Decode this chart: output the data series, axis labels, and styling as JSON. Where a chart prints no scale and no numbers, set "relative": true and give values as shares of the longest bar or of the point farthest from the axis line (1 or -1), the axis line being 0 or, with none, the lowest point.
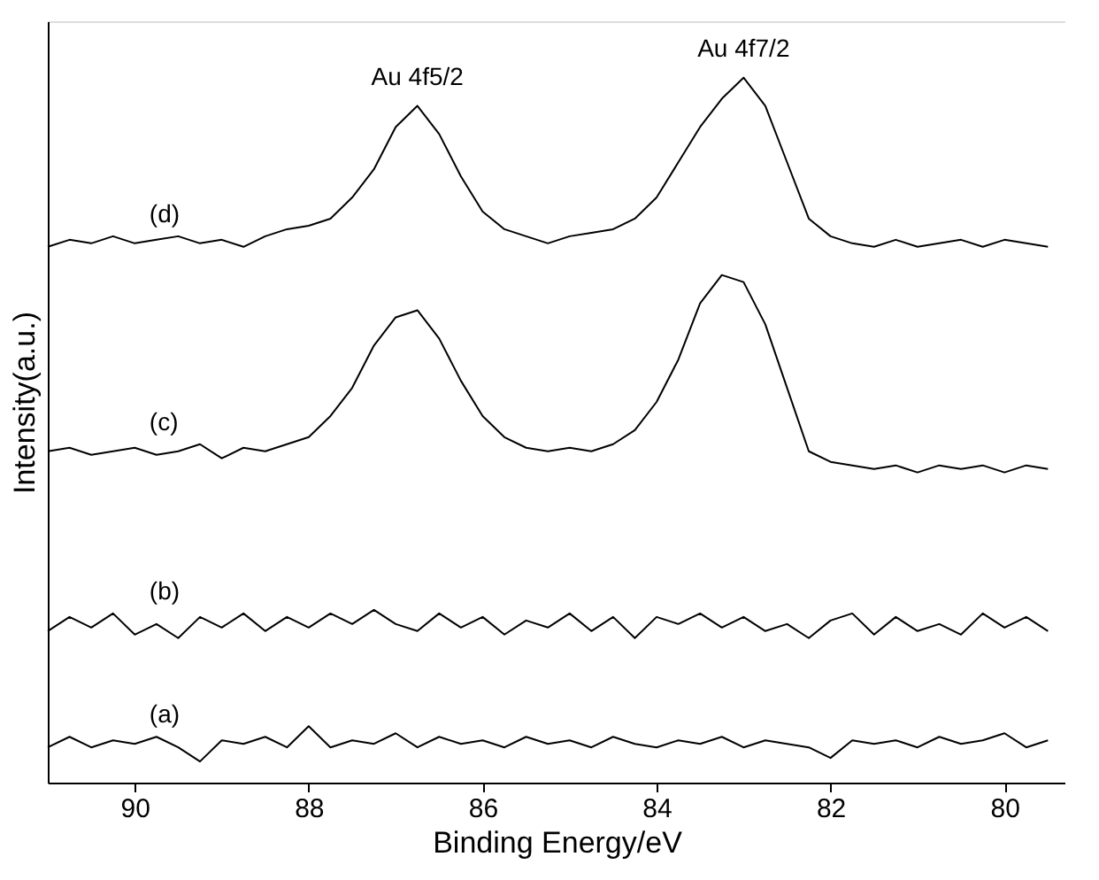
{
  "chart_data": {
    "type": "line",
    "relative": true,
    "xlabel": "Binding Energy/eV",
    "ylabel": "Intensity(a.u.)",
    "xlim": [
      91,
      79.3
    ],
    "xticks": [
      90,
      88,
      86,
      84,
      82,
      80
    ],
    "grid": false,
    "line_style": "solid",
    "x": [
      91,
      90.75,
      90.5,
      90.25,
      90,
      89.75,
      89.5,
      89.25,
      89,
      88.75,
      88.5,
      88.25,
      88,
      87.75,
      87.5,
      87.25,
      87,
      86.75,
      86.5,
      86.25,
      86,
      85.75,
      85.5,
      85.25,
      85,
      84.75,
      84.5,
      84.25,
      84,
      83.75,
      83.5,
      83.25,
      83,
      82.75,
      82.5,
      82.25,
      82,
      81.75,
      81.5,
      81.25,
      81,
      80.75,
      80.5,
      80.25,
      80,
      79.75,
      79.5
    ],
    "series": [
      {
        "name": "(a)",
        "color": "#000000",
        "values": [
          0.05,
          0.065,
          0.05,
          0.06,
          0.055,
          0.065,
          0.05,
          0.03,
          0.06,
          0.055,
          0.065,
          0.05,
          0.08,
          0.05,
          0.06,
          0.055,
          0.07,
          0.05,
          0.065,
          0.055,
          0.06,
          0.05,
          0.065,
          0.055,
          0.06,
          0.05,
          0.065,
          0.055,
          0.05,
          0.06,
          0.055,
          0.065,
          0.05,
          0.06,
          0.055,
          0.05,
          0.035,
          0.06,
          0.055,
          0.06,
          0.05,
          0.065,
          0.055,
          0.06,
          0.07,
          0.05,
          0.06
        ]
      },
      {
        "name": "(b)",
        "color": "#000000",
        "values": [
          0.215,
          0.235,
          0.22,
          0.24,
          0.21,
          0.225,
          0.205,
          0.235,
          0.22,
          0.24,
          0.215,
          0.235,
          0.22,
          0.24,
          0.225,
          0.245,
          0.225,
          0.215,
          0.24,
          0.22,
          0.235,
          0.21,
          0.23,
          0.22,
          0.24,
          0.215,
          0.235,
          0.205,
          0.235,
          0.225,
          0.24,
          0.22,
          0.235,
          0.215,
          0.225,
          0.205,
          0.23,
          0.24,
          0.21,
          0.235,
          0.215,
          0.225,
          0.21,
          0.24,
          0.22,
          0.235,
          0.215
        ]
      },
      {
        "name": "(c)",
        "color": "#000000",
        "values": [
          0.47,
          0.475,
          0.465,
          0.47,
          0.475,
          0.465,
          0.47,
          0.48,
          0.46,
          0.475,
          0.47,
          0.48,
          0.49,
          0.52,
          0.56,
          0.62,
          0.66,
          0.67,
          0.63,
          0.57,
          0.52,
          0.49,
          0.475,
          0.47,
          0.475,
          0.47,
          0.48,
          0.5,
          0.54,
          0.6,
          0.68,
          0.72,
          0.71,
          0.65,
          0.56,
          0.47,
          0.455,
          0.45,
          0.445,
          0.45,
          0.44,
          0.45,
          0.445,
          0.45,
          0.44,
          0.45,
          0.445
        ]
      },
      {
        "name": "(d)",
        "color": "#000000",
        "values": [
          0.76,
          0.77,
          0.765,
          0.775,
          0.765,
          0.77,
          0.775,
          0.765,
          0.77,
          0.76,
          0.775,
          0.785,
          0.79,
          0.8,
          0.83,
          0.87,
          0.93,
          0.96,
          0.92,
          0.86,
          0.81,
          0.785,
          0.775,
          0.765,
          0.775,
          0.78,
          0.785,
          0.8,
          0.83,
          0.88,
          0.93,
          0.97,
          1.0,
          0.96,
          0.88,
          0.8,
          0.775,
          0.765,
          0.76,
          0.77,
          0.76,
          0.765,
          0.77,
          0.76,
          0.77,
          0.765,
          0.76
        ]
      }
    ],
    "annotations": [
      {
        "text": "Au 4f5/2",
        "x": 86.75,
        "y": 0.96
      },
      {
        "text": "Au 4f7/2",
        "x": 83.0,
        "y": 1.0
      }
    ]
  }
}
